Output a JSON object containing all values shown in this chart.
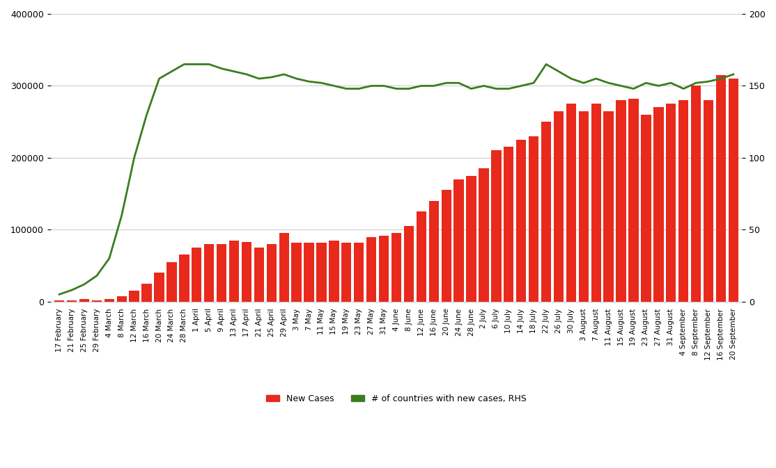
{
  "title": "",
  "background_color": "#ffffff",
  "left_ylim": [
    0,
    400000
  ],
  "right_ylim": [
    0,
    200
  ],
  "left_yticks": [
    0,
    100000,
    200000,
    300000,
    400000
  ],
  "right_yticks": [
    0,
    50,
    100,
    150,
    200
  ],
  "bar_color": "#e8291c",
  "line_color": "#3a7d1e",
  "bar_label": "New Cases",
  "line_label": "# of countries with new cases, RHS",
  "dates": [
    "17 February",
    "21 February",
    "25 February",
    "29 February",
    "4 March",
    "8 March",
    "12 March",
    "16 March",
    "20 March",
    "24 March",
    "28 March",
    "1 April",
    "5 April",
    "9 April",
    "13 April",
    "17 April",
    "21 April",
    "25 April",
    "29 April",
    "3 May",
    "7 May",
    "11 May",
    "15 May",
    "19 May",
    "23 May",
    "27 May",
    "31 May",
    "4 June",
    "8 June",
    "12 June",
    "16 June",
    "20 June",
    "24 June",
    "28 June",
    "2 July",
    "6 July",
    "10 July",
    "14 July",
    "18 July",
    "22 July",
    "26 July",
    "30 July",
    "3 August",
    "7 August",
    "11 August",
    "15 August",
    "19 August",
    "23 August",
    "27 August",
    "31 August",
    "4 September",
    "8 September",
    "12 September",
    "16 September",
    "20 September"
  ],
  "new_cases": [
    2000,
    1500,
    3500,
    1800,
    4000,
    7000,
    15000,
    25000,
    40000,
    55000,
    65000,
    75000,
    80000,
    80000,
    85000,
    83000,
    75000,
    80000,
    95000,
    82000,
    82000,
    82000,
    85000,
    82000,
    82000,
    90000,
    92000,
    95000,
    105000,
    125000,
    140000,
    155000,
    170000,
    175000,
    185000,
    210000,
    215000,
    225000,
    230000,
    250000,
    265000,
    275000,
    265000,
    275000,
    265000,
    280000,
    282000,
    260000,
    270000,
    275000,
    280000,
    300000,
    280000,
    315000,
    310000
  ],
  "countries": [
    5,
    8,
    12,
    18,
    30,
    60,
    100,
    130,
    155,
    160,
    165,
    165,
    165,
    162,
    160,
    158,
    155,
    156,
    158,
    155,
    153,
    152,
    150,
    148,
    148,
    150,
    150,
    148,
    148,
    150,
    150,
    152,
    152,
    148,
    150,
    148,
    148,
    150,
    152,
    165,
    160,
    155,
    152,
    155,
    152,
    150,
    148,
    152,
    150,
    152,
    148,
    152,
    153,
    155,
    158
  ]
}
